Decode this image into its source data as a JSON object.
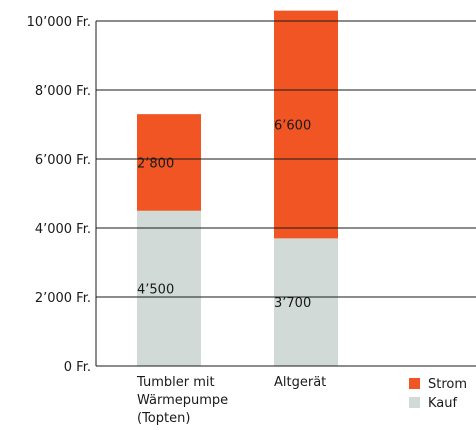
{
  "chart_data": {
    "type": "bar",
    "stacked": true,
    "categories": [
      [
        "Tumbler mit",
        "Wärmepumpe",
        "(Topten)"
      ],
      [
        "Altgerät"
      ]
    ],
    "series": [
      {
        "name": "Kauf",
        "color": "#d1dad7",
        "values": [
          4500,
          3700
        ],
        "labels": [
          "4’500",
          "3’700"
        ]
      },
      {
        "name": "Strom",
        "color": "#f05523",
        "values": [
          2800,
          6600
        ],
        "labels": [
          "2’800",
          "6’600"
        ]
      }
    ],
    "ylim": [
      0,
      10000
    ],
    "yticks": [
      0,
      2000,
      4000,
      6000,
      8000,
      10000
    ],
    "ytick_labels": [
      "0 Fr.",
      "2’000 Fr.",
      "4’000 Fr.",
      "6’000 Fr.",
      "8’000 Fr.",
      "10’000 Fr."
    ],
    "grid": true,
    "legend_position": "bottom-right",
    "title": "",
    "xlabel": "",
    "ylabel": ""
  }
}
